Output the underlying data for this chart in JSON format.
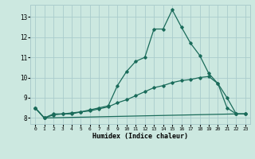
{
  "title": "",
  "xlabel": "Humidex (Indice chaleur)",
  "bg_color": "#cce8e0",
  "grid_color": "#aacccc",
  "line_color": "#1a6b5a",
  "xlim": [
    -0.5,
    23.5
  ],
  "ylim": [
    7.7,
    13.6
  ],
  "yticks": [
    8,
    9,
    10,
    11,
    12,
    13
  ],
  "xticks": [
    0,
    1,
    2,
    3,
    4,
    5,
    6,
    7,
    8,
    9,
    10,
    11,
    12,
    13,
    14,
    15,
    16,
    17,
    18,
    19,
    20,
    21,
    22,
    23
  ],
  "line1_x": [
    0,
    1,
    2,
    3,
    4,
    5,
    6,
    7,
    8,
    9,
    10,
    11,
    12,
    13,
    14,
    15,
    16,
    17,
    18,
    19,
    20,
    21,
    22,
    23
  ],
  "line1_y": [
    8.5,
    8.0,
    8.2,
    8.2,
    8.2,
    8.3,
    8.4,
    8.5,
    8.6,
    9.6,
    10.3,
    10.8,
    11.0,
    12.4,
    12.4,
    13.35,
    12.5,
    11.7,
    11.1,
    10.2,
    9.7,
    9.0,
    8.2,
    8.2
  ],
  "line2_x": [
    0,
    1,
    2,
    3,
    4,
    5,
    6,
    7,
    8,
    9,
    10,
    11,
    12,
    13,
    14,
    15,
    16,
    17,
    18,
    19,
    20,
    21,
    22,
    23
  ],
  "line2_y": [
    8.5,
    8.0,
    8.15,
    8.2,
    8.25,
    8.3,
    8.35,
    8.45,
    8.55,
    8.75,
    8.9,
    9.1,
    9.3,
    9.5,
    9.6,
    9.75,
    9.85,
    9.9,
    10.0,
    10.05,
    9.7,
    8.5,
    8.2,
    8.2
  ],
  "line3_x": [
    0,
    1,
    22,
    23
  ],
  "line3_y": [
    8.5,
    8.0,
    8.2,
    8.2
  ]
}
